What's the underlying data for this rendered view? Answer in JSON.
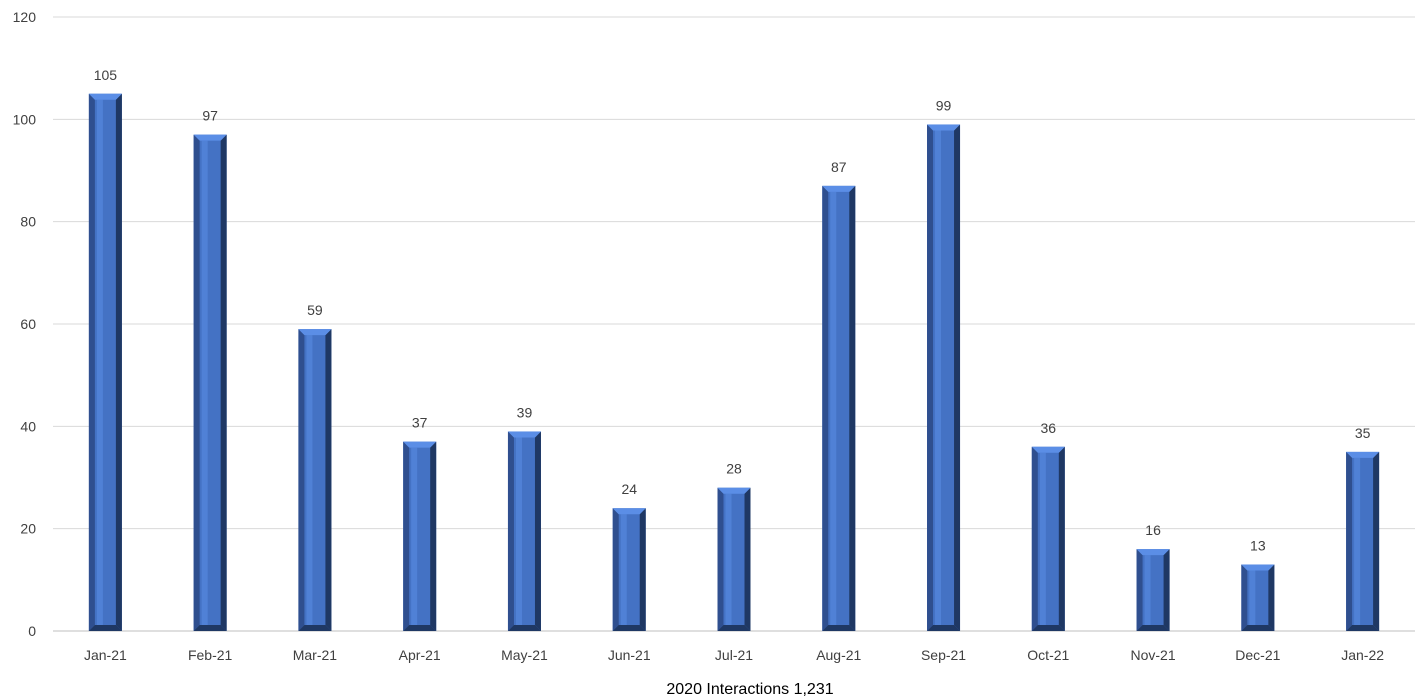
{
  "chart_data": {
    "type": "bar",
    "categories": [
      "Jan-21",
      "Feb-21",
      "Mar-21",
      "Apr-21",
      "May-21",
      "Jun-21",
      "Jul-21",
      "Aug-21",
      "Sep-21",
      "Oct-21",
      "Nov-21",
      "Dec-21",
      "Jan-22"
    ],
    "values": [
      105,
      97,
      59,
      37,
      39,
      24,
      28,
      87,
      99,
      36,
      16,
      13,
      35
    ],
    "title": "",
    "xlabel": "2020 Interactions 1,231",
    "ylabel": "",
    "ylim": [
      0,
      120
    ],
    "yticks": [
      "0",
      "20",
      "40",
      "60",
      "80",
      "100",
      "120"
    ],
    "grid": true,
    "legend": "none",
    "colors": {
      "bar_front": "#4472c4",
      "bar_highlight": "#5b8ee6",
      "bar_side": "#2f4f8f",
      "bar_dark": "#1f3864",
      "gridline": "#d9d9d9",
      "axis_line": "#bfbfbf",
      "label_text": "#404040"
    }
  }
}
